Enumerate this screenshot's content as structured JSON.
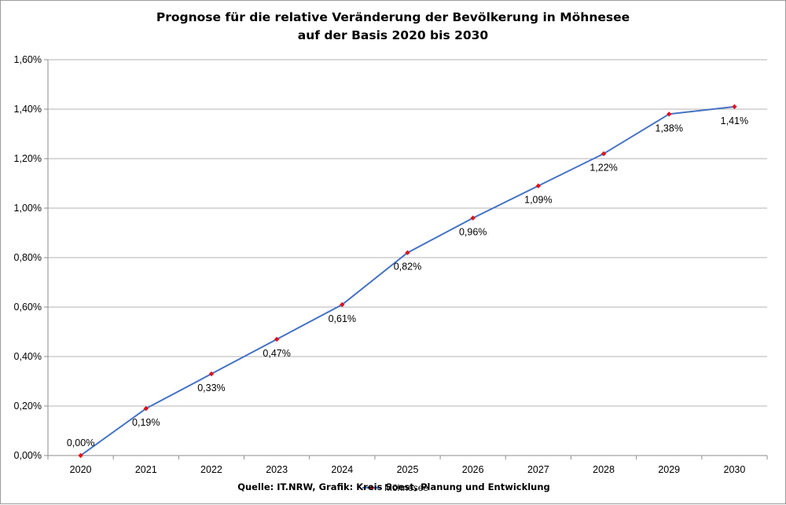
{
  "chart_data": {
    "type": "line",
    "title_line1": "Prognose für die relative Veränderung der Bevölkerung in Möhnesee",
    "title_line2": "auf der Basis 2020 bis 2030",
    "x": [
      "2020",
      "2021",
      "2022",
      "2023",
      "2024",
      "2025",
      "2026",
      "2027",
      "2028",
      "2029",
      "2030"
    ],
    "series": [
      {
        "name": "Möhnesee",
        "values": [
          0.0,
          0.19,
          0.33,
          0.47,
          0.61,
          0.82,
          0.96,
          1.09,
          1.22,
          1.38,
          1.41
        ],
        "labels": [
          "0,00%",
          "0,19%",
          "0,33%",
          "0,47%",
          "0,61%",
          "0,82%",
          "0,96%",
          "1,09%",
          "1,22%",
          "1,38%",
          "1,41%"
        ],
        "line_color": "#4472c4",
        "marker_color": "#e0101c"
      }
    ],
    "ylim": [
      0,
      1.6
    ],
    "y_ticks": [
      "0,00%",
      "0,20%",
      "0,40%",
      "0,60%",
      "0,80%",
      "1,00%",
      "1,20%",
      "1,40%",
      "1,60%"
    ],
    "grid": true,
    "legend_position": "bottom",
    "source": "Quelle: IT.NRW, Grafik: Kreis Soest, Planung und Entwicklung"
  }
}
